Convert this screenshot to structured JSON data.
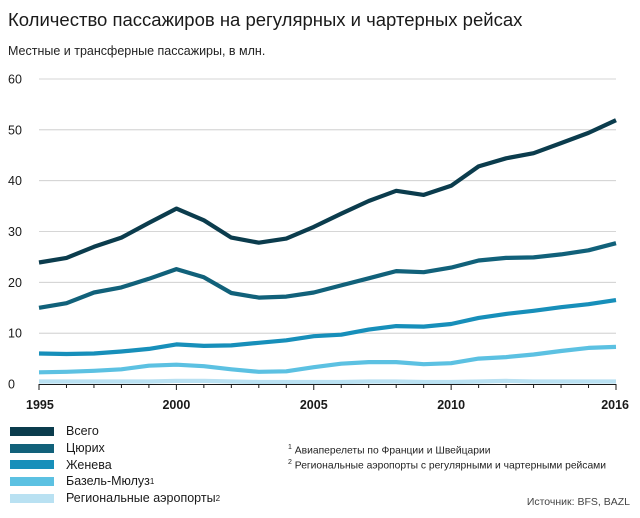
{
  "title": "Количество пассажиров на регулярных и чартерных рейсах",
  "subtitle": "Местные и трансферные пассажиры, в млн.",
  "chart_data": {
    "type": "line",
    "title": "Количество пассажиров на регулярных и чартерных рейсах",
    "ylabel": "Местные и трансферные пассажиры, в млн.",
    "xlabel": "",
    "xlim": [
      1995,
      2016
    ],
    "ylim": [
      0,
      60
    ],
    "xticks": [
      "1995",
      "2000",
      "2005",
      "2010",
      "2016"
    ],
    "yticks": [
      "0",
      "10",
      "20",
      "30",
      "40",
      "50",
      "60"
    ],
    "grid": "horizontal",
    "x": [
      1995,
      1996,
      1997,
      1998,
      1999,
      2000,
      2001,
      2002,
      2003,
      2004,
      2005,
      2006,
      2007,
      2008,
      2009,
      2010,
      2011,
      2012,
      2013,
      2014,
      2015,
      2016
    ],
    "series": [
      {
        "name": "Всего",
        "color": "#0b3c4d",
        "values": [
          23.9,
          24.8,
          27.0,
          28.8,
          31.7,
          34.5,
          32.2,
          28.8,
          27.8,
          28.6,
          30.9,
          33.5,
          36.0,
          38.0,
          37.2,
          39.0,
          42.8,
          44.4,
          45.4,
          47.4,
          49.4,
          51.9
        ]
      },
      {
        "name": "Цюрих",
        "color": "#11617a",
        "values": [
          15.0,
          15.9,
          18.0,
          19.0,
          20.7,
          22.6,
          21.0,
          17.9,
          17.0,
          17.2,
          18.0,
          19.4,
          20.8,
          22.2,
          22.0,
          22.9,
          24.3,
          24.8,
          24.9,
          25.5,
          26.3,
          27.7
        ]
      },
      {
        "name": "Женева",
        "color": "#178fba",
        "values": [
          6.0,
          5.9,
          6.0,
          6.4,
          6.9,
          7.8,
          7.5,
          7.6,
          8.1,
          8.6,
          9.4,
          9.7,
          10.7,
          11.4,
          11.3,
          11.8,
          13.0,
          13.8,
          14.4,
          15.1,
          15.7,
          16.5
        ]
      },
      {
        "name": "Базель-Мюлуз",
        "color": "#5cc1e2",
        "values": [
          2.3,
          2.4,
          2.6,
          2.9,
          3.6,
          3.8,
          3.5,
          2.9,
          2.4,
          2.5,
          3.3,
          4.0,
          4.3,
          4.3,
          3.9,
          4.1,
          5.0,
          5.3,
          5.8,
          6.5,
          7.1,
          7.3
        ]
      },
      {
        "name": "Региональные аэропорты",
        "color": "#b9e1f2",
        "values": [
          0.5,
          0.5,
          0.5,
          0.5,
          0.5,
          0.6,
          0.6,
          0.5,
          0.4,
          0.4,
          0.4,
          0.4,
          0.5,
          0.5,
          0.4,
          0.4,
          0.5,
          0.6,
          0.5,
          0.5,
          0.5,
          0.5
        ]
      }
    ]
  },
  "legend": [
    {
      "label": "Всего",
      "sup": "",
      "sub": "",
      "color": "#0b3c4d"
    },
    {
      "label": "Цюрих",
      "sup": "",
      "sub": "",
      "color": "#11617a"
    },
    {
      "label": "Женева",
      "sup": "",
      "sub": "",
      "color": "#178fba"
    },
    {
      "label": "Базель-Мюлуз",
      "sup": "1",
      "sub": "",
      "color": "#5cc1e2"
    },
    {
      "label": "Региональные аэропорты",
      "sup": "",
      "sub": "2",
      "color": "#b9e1f2"
    }
  ],
  "notes": [
    {
      "mark": "1",
      "text": "Авиаперелеты по Франции и Швейцарии"
    },
    {
      "mark": "2",
      "text": "Региональные аэропорты с регулярными и чартерными рейсами"
    }
  ],
  "source": "Источник: BFS, BAZL"
}
